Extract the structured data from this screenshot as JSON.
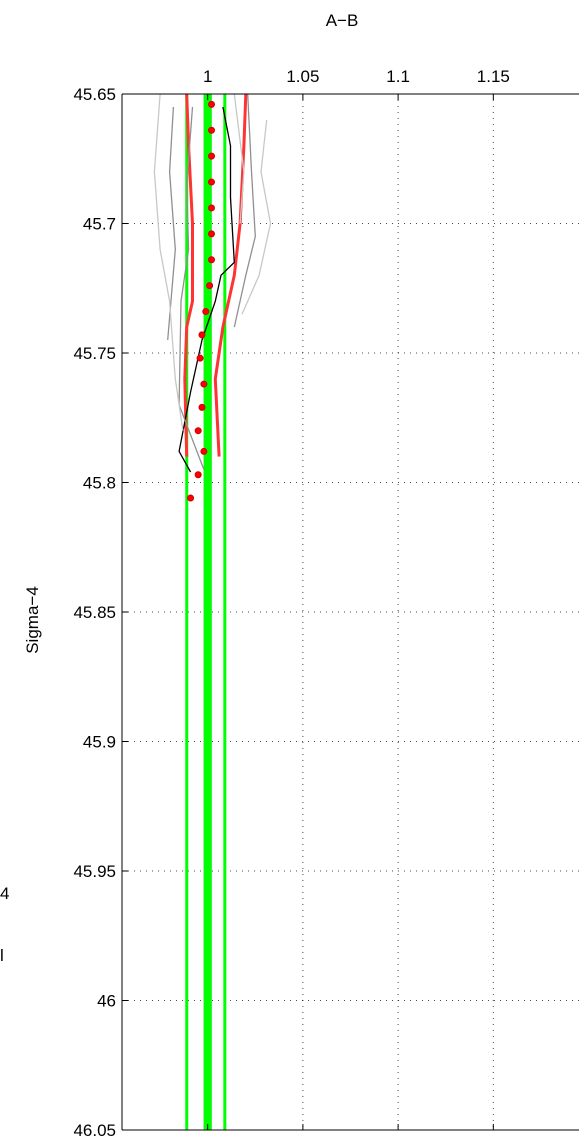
{
  "chart_data": {
    "type": "line",
    "title": "",
    "xlabel": "A−B",
    "ylabel": "Sigma−4",
    "xlim": [
      0.955,
      1.195
    ],
    "ylim": [
      45.65,
      46.05
    ],
    "y_reversed": true,
    "x_axis_position": "top",
    "grid": true,
    "x_ticks": [
      1,
      1.05,
      1.1,
      1.15
    ],
    "x_tick_labels": [
      "1",
      "1.05",
      "1.1",
      "1.15"
    ],
    "y_ticks": [
      45.65,
      45.7,
      45.75,
      45.8,
      45.85,
      45.9,
      45.95,
      46,
      46.05
    ],
    "y_tick_labels": [
      "45.65",
      "45.7",
      "45.75",
      "45.8",
      "45.85",
      "45.9",
      "45.95",
      "46",
      "46.05"
    ],
    "vertical_lines": [
      {
        "x": 1.0,
        "color": "#808080",
        "width": "thick"
      },
      {
        "x": 1.0,
        "color": "#00ff00",
        "width": "thick"
      },
      {
        "x": 0.989,
        "color": "#00ff00",
        "width": "thin"
      },
      {
        "x": 1.009,
        "color": "#00ff00",
        "width": "thin"
      }
    ],
    "series": [
      {
        "color": "#ff3333",
        "style": "line",
        "points": [
          [
            0.989,
            45.65
          ],
          [
            0.99,
            45.67
          ],
          [
            0.992,
            45.7
          ],
          [
            0.992,
            45.73
          ],
          [
            0.989,
            45.74
          ],
          [
            0.988,
            45.76
          ],
          [
            0.989,
            45.79
          ]
        ]
      },
      {
        "color": "#ff3333",
        "style": "line",
        "points": [
          [
            1.02,
            45.65
          ],
          [
            1.019,
            45.67
          ],
          [
            1.017,
            45.7
          ],
          [
            1.014,
            45.72
          ],
          [
            1.008,
            45.74
          ],
          [
            1.004,
            45.76
          ],
          [
            1.006,
            45.79
          ]
        ]
      },
      {
        "color": "#000000",
        "style": "line",
        "points": [
          [
            1.008,
            45.655
          ],
          [
            1.012,
            45.67
          ],
          [
            1.012,
            45.69
          ],
          [
            1.014,
            45.715
          ],
          [
            1.007,
            45.72
          ],
          [
            1.004,
            45.73
          ],
          [
            0.997,
            45.745
          ],
          [
            0.991,
            45.765
          ],
          [
            0.985,
            45.788
          ],
          [
            0.991,
            45.796
          ]
        ]
      },
      {
        "color": "#909090",
        "style": "line",
        "points": [
          [
            0.982,
            45.655
          ],
          [
            0.98,
            45.68
          ],
          [
            0.983,
            45.71
          ],
          [
            0.979,
            45.745
          ]
        ]
      },
      {
        "color": "#909090",
        "style": "line",
        "points": [
          [
            0.992,
            45.655
          ],
          [
            0.989,
            45.685
          ],
          [
            0.99,
            45.71
          ],
          [
            0.986,
            45.73
          ],
          [
            0.985,
            45.77
          ],
          [
            0.998,
            45.795
          ]
        ]
      },
      {
        "color": "#909090",
        "style": "line",
        "points": [
          [
            1.021,
            45.65
          ],
          [
            1.023,
            45.68
          ],
          [
            1.025,
            45.705
          ],
          [
            1.02,
            45.72
          ],
          [
            1.014,
            45.74
          ]
        ]
      },
      {
        "color": "#c8c8c8",
        "style": "line",
        "points": [
          [
            0.975,
            45.65
          ],
          [
            0.972,
            45.68
          ],
          [
            0.975,
            45.71
          ],
          [
            0.98,
            45.73
          ],
          [
            0.983,
            45.76
          ],
          [
            0.987,
            45.78
          ]
        ]
      },
      {
        "color": "#c8c8c8",
        "style": "line",
        "points": [
          [
            1.031,
            45.66
          ],
          [
            1.028,
            45.68
          ],
          [
            1.033,
            45.7
          ],
          [
            1.027,
            45.72
          ],
          [
            1.018,
            45.735
          ]
        ]
      },
      {
        "color": "#c8c8c8",
        "style": "line",
        "points": [
          [
            1.014,
            45.65
          ],
          [
            1.019,
            45.68
          ],
          [
            1.017,
            45.7
          ]
        ]
      },
      {
        "color": "#ff0000",
        "style": "markers",
        "points": [
          [
            1.002,
            45.654
          ],
          [
            1.002,
            45.664
          ],
          [
            1.002,
            45.674
          ],
          [
            1.002,
            45.684
          ],
          [
            1.002,
            45.694
          ],
          [
            1.002,
            45.704
          ],
          [
            1.002,
            45.714
          ],
          [
            1.001,
            45.724
          ],
          [
            0.999,
            45.734
          ],
          [
            0.997,
            45.743
          ],
          [
            0.996,
            45.752
          ],
          [
            0.998,
            45.762
          ],
          [
            0.997,
            45.771
          ],
          [
            0.995,
            45.78
          ],
          [
            0.998,
            45.788
          ],
          [
            0.995,
            45.797
          ],
          [
            0.991,
            45.806
          ]
        ]
      }
    ]
  },
  "left_edge_fragments": [
    "4",
    "l"
  ]
}
